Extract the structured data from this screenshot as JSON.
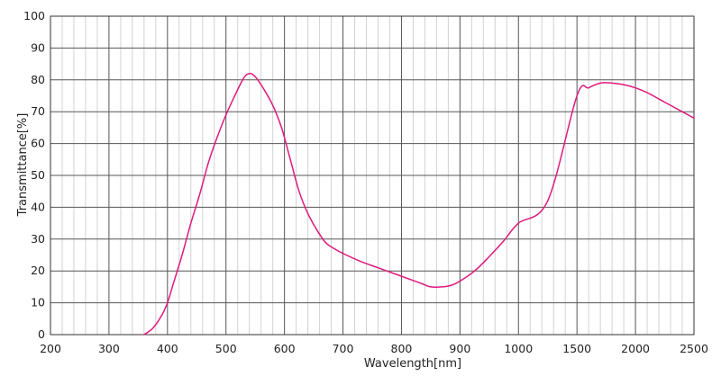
{
  "chart_data": {
    "type": "line",
    "xlabel": "Wavelength[nm]",
    "ylabel": "Transmittance[%]",
    "x_ticks": [
      "200",
      "300",
      "400",
      "500",
      "600",
      "700",
      "800",
      "900",
      "1000",
      "1500",
      "2000",
      "2500"
    ],
    "y_ticks": [
      "0",
      "10",
      "20",
      "30",
      "40",
      "50",
      "60",
      "70",
      "80",
      "90",
      "100"
    ],
    "ylim": [
      0,
      100
    ],
    "xlim": [
      200,
      2500
    ],
    "x_scale": "piecewise: 100 nm steps 200–1000, 500 nm steps 1000–2500",
    "grid": true,
    "line_color": "#e0197d",
    "series": [
      {
        "x": [
          360,
          375,
          390,
          400,
          410,
          425,
          440,
          455,
          470,
          485,
          500,
          515,
          530,
          540,
          550,
          565,
          580,
          595,
          610,
          625,
          640,
          655,
          670,
          685,
          700,
          730,
          760,
          790,
          820,
          835,
          850,
          870,
          885,
          900,
          925,
          950,
          975,
          1000,
          1250,
          1500,
          1600,
          1700,
          1800,
          1900,
          2000,
          2100,
          2200,
          2300,
          2400,
          2500
        ],
        "y": [
          0,
          2,
          6,
          10,
          16,
          25,
          35,
          44,
          54,
          62,
          69,
          75,
          80.5,
          82,
          81,
          77,
          72,
          65,
          55,
          45,
          38,
          33,
          29,
          27,
          25.5,
          23,
          21,
          19,
          17,
          16,
          15,
          15,
          15.5,
          16.8,
          20,
          24.5,
          29.5,
          35,
          42,
          75,
          77.5,
          79,
          79,
          78.5,
          77.5,
          76,
          74,
          72,
          70,
          68
        ]
      }
    ]
  }
}
